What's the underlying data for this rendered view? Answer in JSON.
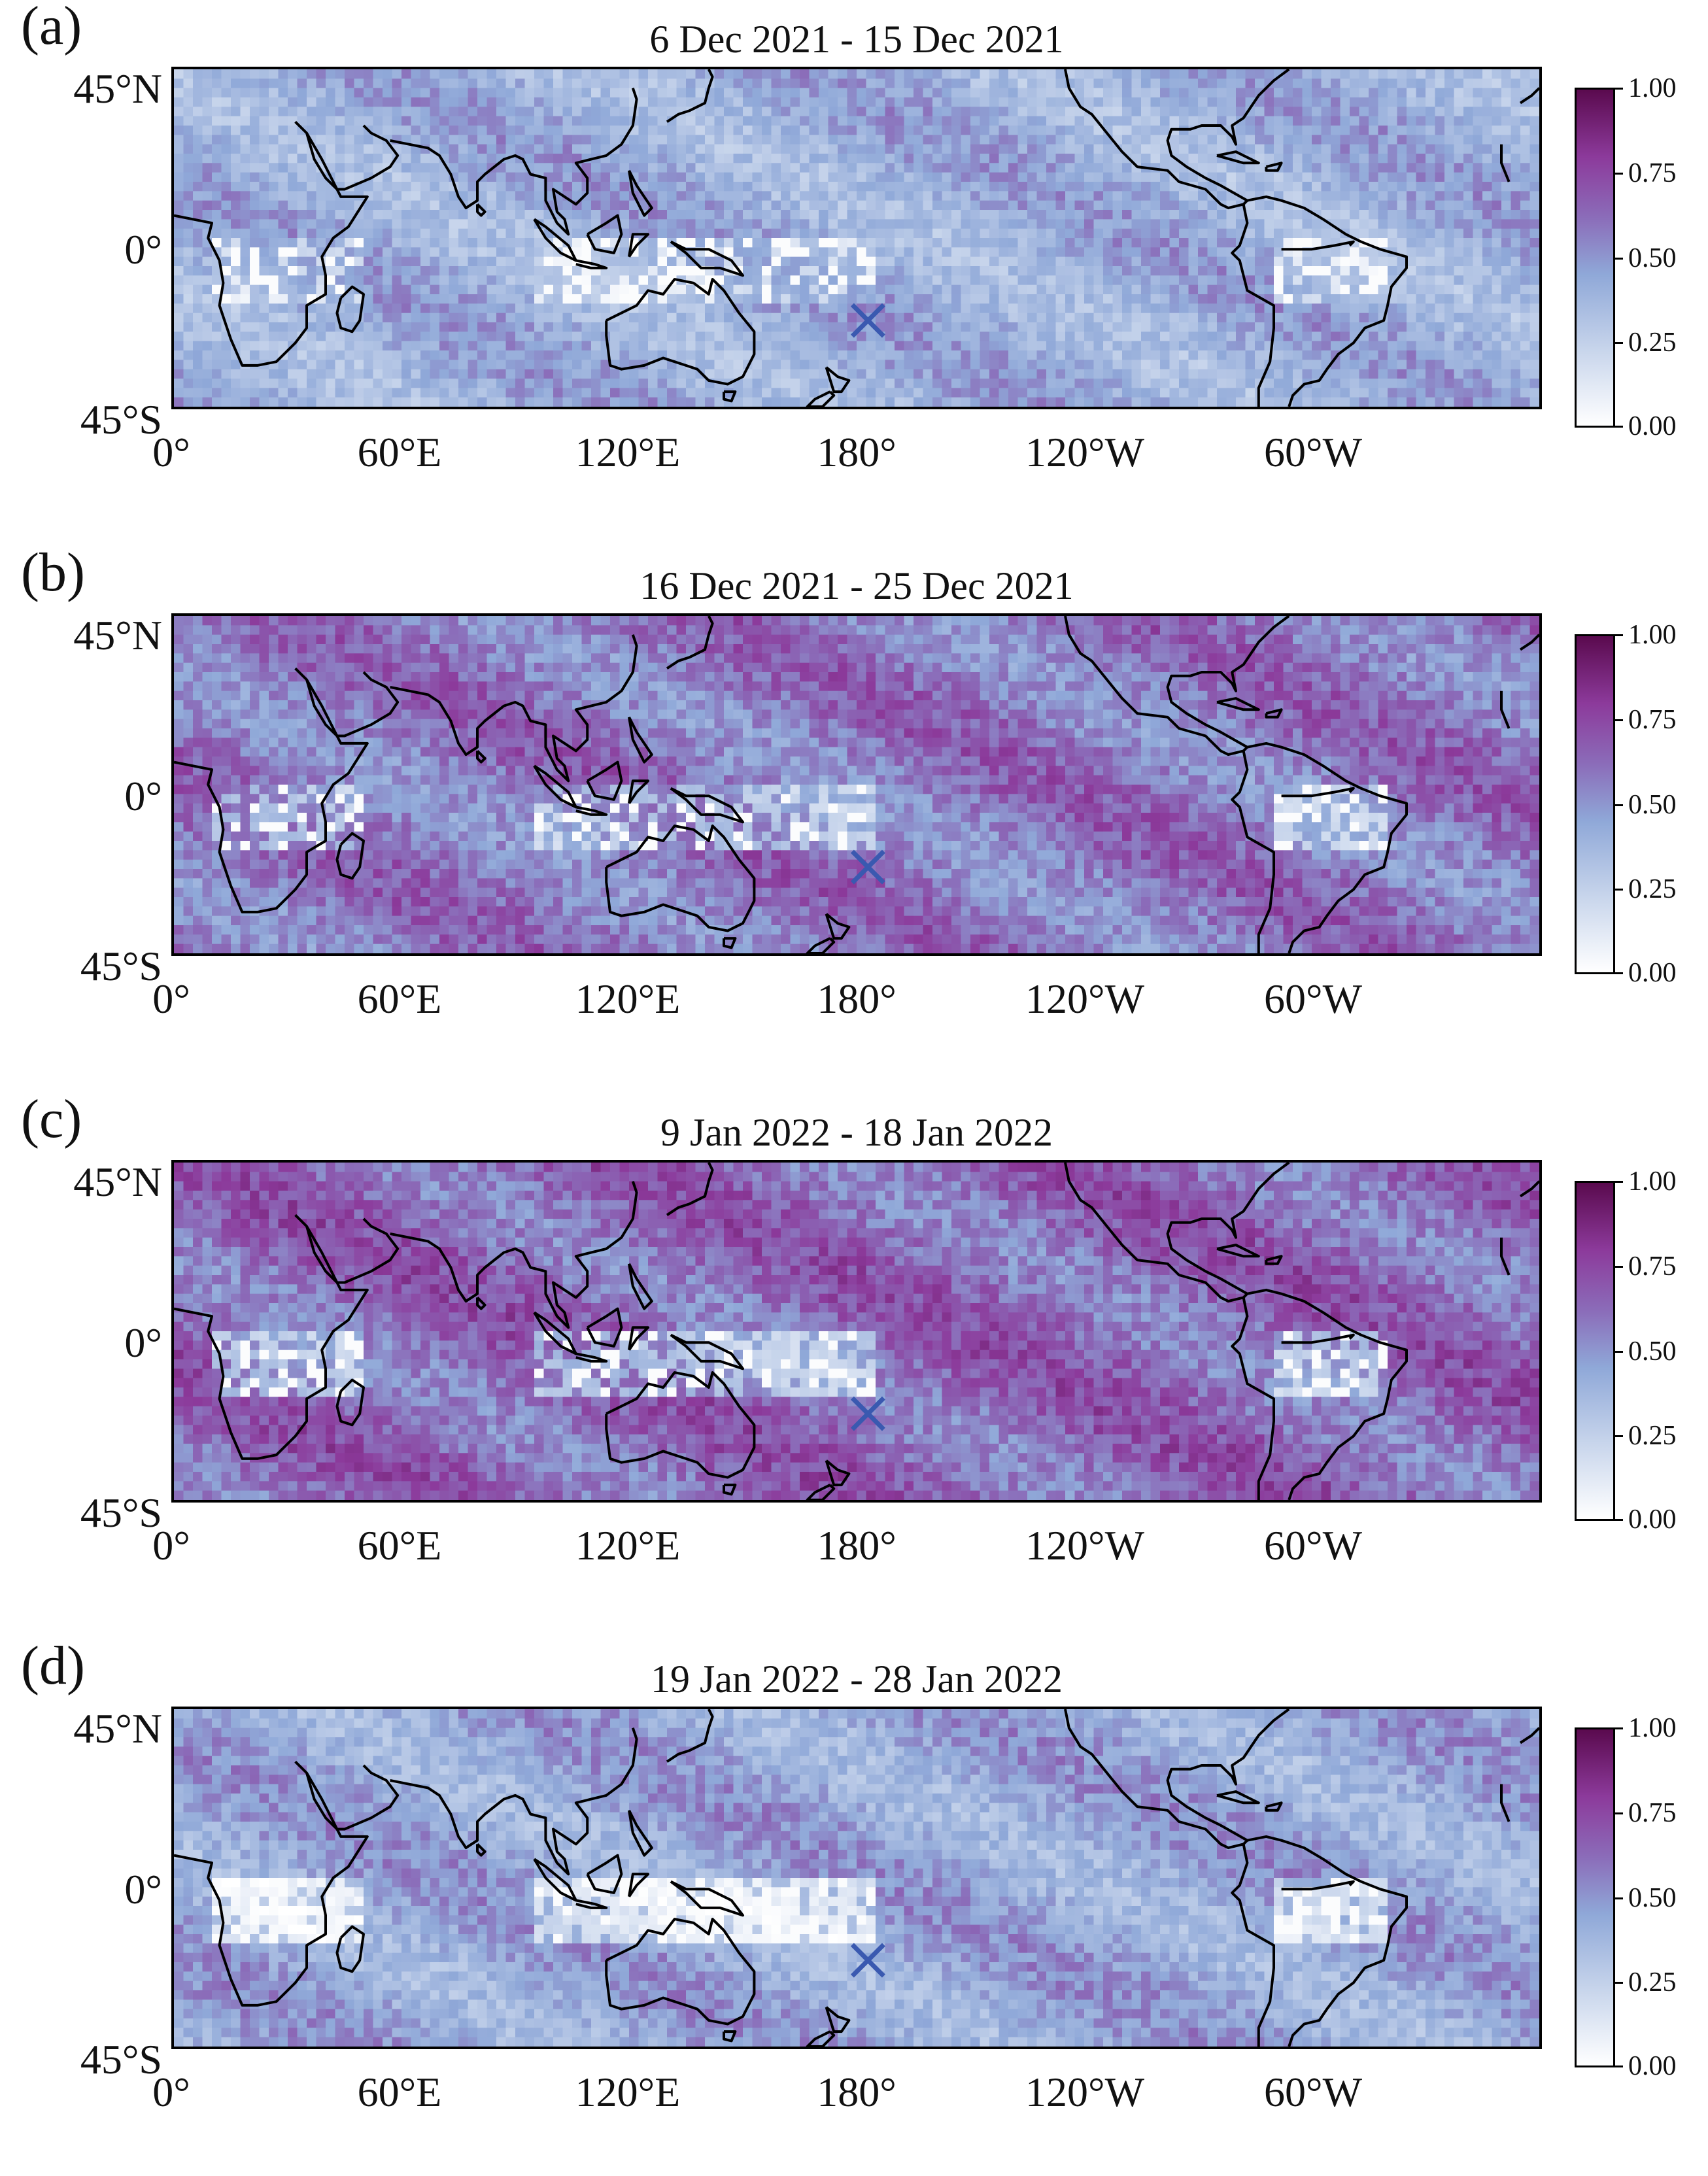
{
  "panels": [
    {
      "label": "(a)",
      "title": "6 Dec 2021 - 15 Dec 2021",
      "intensity": 0.45
    },
    {
      "label": "(b)",
      "title": "16 Dec 2021 - 25 Dec 2021",
      "intensity": 0.62
    },
    {
      "label": "(c)",
      "title": "9 Jan 2022 - 18 Jan 2022",
      "intensity": 0.66
    },
    {
      "label": "(d)",
      "title": "19 Jan 2022 - 28 Jan 2022",
      "intensity": 0.48
    }
  ],
  "axes": {
    "lat_labels": [
      "45°N",
      "0°",
      "45°S"
    ],
    "lon_labels": [
      "0°",
      "60°E",
      "120°E",
      "180°",
      "120°W",
      "60°W"
    ],
    "lat_range": [
      -45,
      45
    ],
    "lon_range": [
      0,
      360
    ]
  },
  "colorbar": {
    "ticks": [
      "1.00",
      "0.75",
      "0.50",
      "0.25",
      "0.00"
    ],
    "range": [
      0,
      1
    ]
  },
  "marker": {
    "symbol": "×",
    "lon": 183,
    "lat": -22,
    "color": "#3a59b0"
  },
  "colors": {
    "low": "#ffffff",
    "mid": "#8fa8d8",
    "high": "#5a0a4e"
  }
}
